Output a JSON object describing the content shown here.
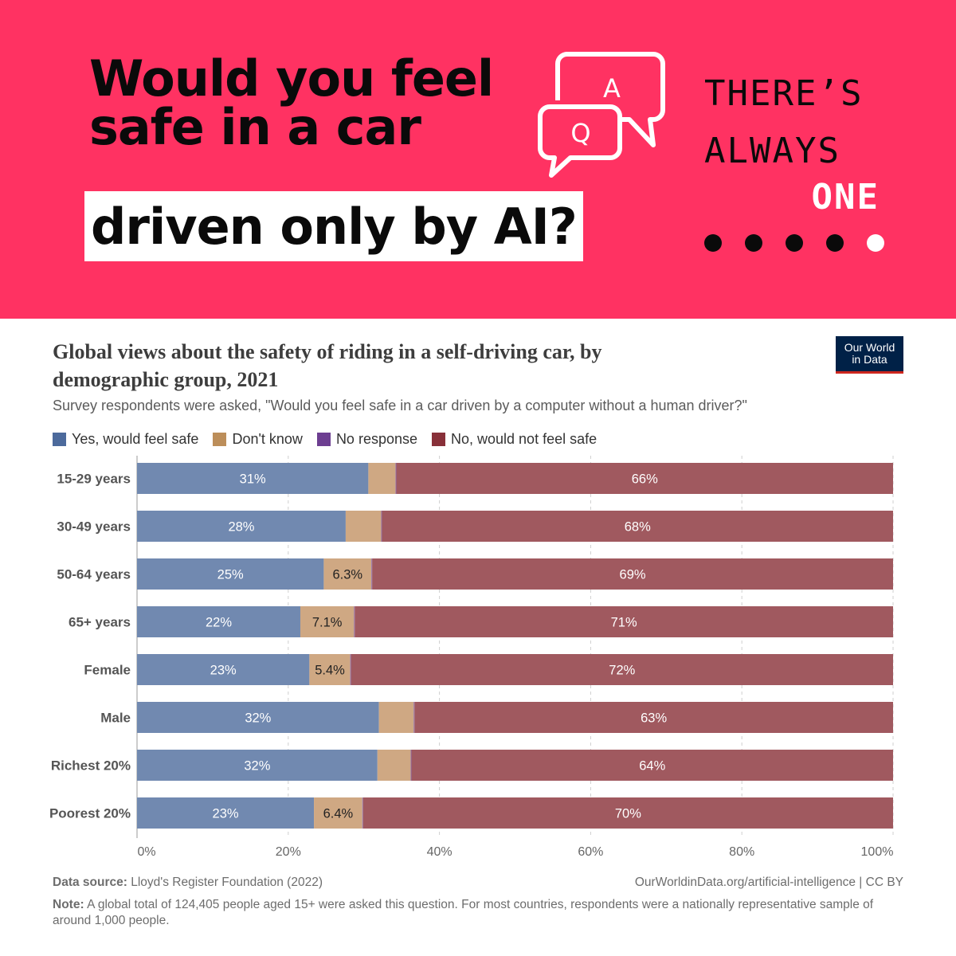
{
  "banner": {
    "headline_lines": [
      "Would you feel",
      "safe in a car",
      "driven only by AI?"
    ],
    "icon_letters": {
      "a": "A",
      "q": "Q"
    },
    "brand_lines": [
      "THERE’S",
      "ALWAYS",
      "ONE"
    ],
    "background_color": "#ff3262",
    "dot_colors": [
      "#0a0a0a",
      "#0a0a0a",
      "#0a0a0a",
      "#0a0a0a",
      "#ffffff"
    ]
  },
  "logo": {
    "line1": "Our World",
    "line2": "in Data"
  },
  "footer": {
    "source_label": "Data source:",
    "source_text": "Lloyd's Register Foundation (2022)",
    "url": "OurWorldinData.org/artificial-intelligence | CC BY",
    "note_label": "Note:",
    "note_text": "A global total of 124,405 people aged 15+ were asked this question. For most countries, respondents were a nationally representative sample of around 1,000 people."
  },
  "chart_data": {
    "type": "bar",
    "orientation": "horizontal",
    "stacked": true,
    "title": "Global views about the safety of riding in a self-driving car, by demographic group, 2021",
    "subtitle": "Survey respondents were asked, \"Would you feel safe in a car driven by a computer without a human driver?\"",
    "legend_position": "top",
    "grid": true,
    "xlim": [
      0,
      100
    ],
    "x_ticks": [
      "0%",
      "20%",
      "40%",
      "60%",
      "80%",
      "100%"
    ],
    "categories": [
      "15-29 years",
      "30-49 years",
      "50-64 years",
      "65+ years",
      "Female",
      "Male",
      "Richest 20%",
      "Poorest 20%"
    ],
    "series": [
      {
        "name": "Yes, would feel safe",
        "color": "#4c6a9c",
        "bar_color": "#7189b0",
        "label_color": "#ffffff",
        "values": [
          30.6,
          27.6,
          24.7,
          21.6,
          22.8,
          32.0,
          31.8,
          23.4
        ],
        "labels": [
          "31%",
          "28%",
          "25%",
          "22%",
          "23%",
          "32%",
          "32%",
          "23%"
        ]
      },
      {
        "name": "Don't know",
        "color": "#bc8e5a",
        "bar_color": "#cfa883",
        "label_color": "#222222",
        "values": [
          3.6,
          4.7,
          6.3,
          7.1,
          5.4,
          4.6,
          4.4,
          6.4
        ],
        "labels": [
          "",
          "",
          "6.3%",
          "7.1%",
          "5.4%",
          "",
          "",
          "6.4%"
        ]
      },
      {
        "name": "No response",
        "color": "#6d3e91",
        "bar_color": "#8e6aa8",
        "label_color": "#ffffff",
        "values": [
          0.1,
          0.1,
          0.1,
          0.1,
          0.1,
          0.1,
          0.1,
          0.1
        ],
        "labels": [
          "",
          "",
          "",
          "",
          "",
          "",
          "",
          ""
        ]
      },
      {
        "name": "No, would not feel safe",
        "color": "#883039",
        "bar_color": "#a0595f",
        "label_color": "#ffffff",
        "values": [
          65.7,
          67.6,
          68.9,
          71.2,
          71.7,
          63.3,
          63.7,
          70.1
        ],
        "labels": [
          "66%",
          "68%",
          "69%",
          "71%",
          "72%",
          "63%",
          "64%",
          "70%"
        ]
      }
    ]
  }
}
